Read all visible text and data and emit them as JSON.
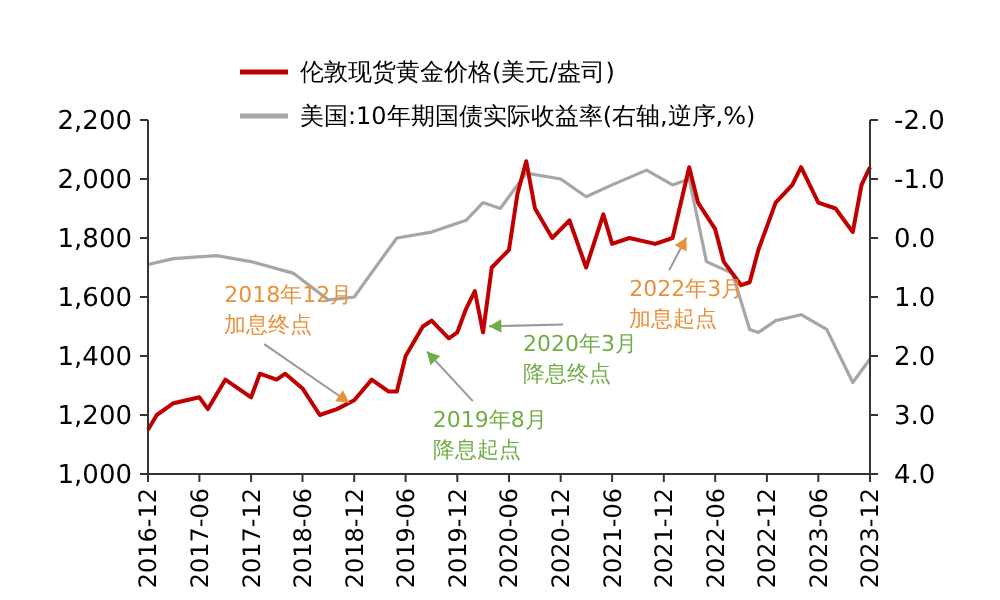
{
  "chart_data": {
    "type": "line",
    "legend": "top",
    "xlim": [
      "2016-12",
      "2023-12"
    ],
    "xticks": [
      "2016-12",
      "2017-06",
      "2017-12",
      "2018-06",
      "2018-12",
      "2019-06",
      "2019-12",
      "2020-06",
      "2020-12",
      "2021-06",
      "2021-12",
      "2022-06",
      "2022-12",
      "2023-06",
      "2023-12"
    ],
    "ylim": [
      1000,
      2200
    ],
    "yticks": [
      {
        "value": 1000,
        "label": "1,000"
      },
      {
        "value": 1200,
        "label": "1,200"
      },
      {
        "value": 1400,
        "label": "1,400"
      },
      {
        "value": 1600,
        "label": "1,600"
      },
      {
        "value": 1800,
        "label": "1,800"
      },
      {
        "value": 2000,
        "label": "2,000"
      },
      {
        "value": 2200,
        "label": "2,200"
      }
    ],
    "y2lim": [
      4,
      -2
    ],
    "y2ticks": [
      {
        "value": 4,
        "label": "4.0"
      },
      {
        "value": 3,
        "label": "3.0"
      },
      {
        "value": 2,
        "label": "2.0"
      },
      {
        "value": 1,
        "label": "1.0"
      },
      {
        "value": 0,
        "label": "0.0"
      },
      {
        "value": -1,
        "label": "-1.0"
      },
      {
        "value": -2,
        "label": "-2.0"
      }
    ],
    "series": [
      {
        "name": "伦敦现货黄金价格(美元/盎司)",
        "color": "#c00000",
        "x": [
          "2016-12",
          "2017-01",
          "2017-03",
          "2017-06",
          "2017-07",
          "2017-09",
          "2017-12",
          "2018-01",
          "2018-03",
          "2018-04",
          "2018-06",
          "2018-08",
          "2018-10",
          "2018-12",
          "2019-02",
          "2019-04",
          "2019-05",
          "2019-06",
          "2019-08",
          "2019-09",
          "2019-11",
          "2019-12",
          "2020-01",
          "2020-02",
          "2020-03",
          "2020-04",
          "2020-06",
          "2020-07",
          "2020-08",
          "2020-09",
          "2020-11",
          "2021-01",
          "2021-03",
          "2021-05",
          "2021-06",
          "2021-08",
          "2021-11",
          "2022-01",
          "2022-03",
          "2022-04",
          "2022-06",
          "2022-07",
          "2022-09",
          "2022-10",
          "2022-11",
          "2023-01",
          "2023-03",
          "2023-04",
          "2023-06",
          "2023-08",
          "2023-10",
          "2023-11",
          "2023-12"
        ],
        "values": [
          1150,
          1200,
          1240,
          1260,
          1220,
          1320,
          1260,
          1340,
          1320,
          1340,
          1290,
          1200,
          1220,
          1250,
          1320,
          1280,
          1280,
          1400,
          1500,
          1520,
          1460,
          1480,
          1560,
          1620,
          1480,
          1700,
          1760,
          1950,
          2060,
          1900,
          1800,
          1860,
          1700,
          1880,
          1780,
          1800,
          1780,
          1800,
          2040,
          1920,
          1830,
          1720,
          1640,
          1650,
          1760,
          1920,
          1980,
          2040,
          1920,
          1900,
          1820,
          1980,
          2040
        ]
      },
      {
        "name": "美国:10年期国债实际收益率(右轴,逆序,%)",
        "color": "#a6a6a6",
        "axis": "y2",
        "x": [
          "2016-12",
          "2017-03",
          "2017-08",
          "2017-12",
          "2018-05",
          "2018-09",
          "2018-12",
          "2019-03",
          "2019-05",
          "2019-09",
          "2020-01",
          "2020-03",
          "2020-05",
          "2020-08",
          "2020-12",
          "2021-03",
          "2021-06",
          "2021-10",
          "2022-01",
          "2022-03",
          "2022-05",
          "2022-08",
          "2022-10",
          "2022-11",
          "2023-01",
          "2023-04",
          "2023-07",
          "2023-10",
          "2023-12"
        ],
        "values": [
          0.45,
          0.35,
          0.3,
          0.4,
          0.6,
          1.05,
          1.0,
          0.4,
          0.0,
          -0.1,
          -0.3,
          -0.6,
          -0.5,
          -1.1,
          -1.0,
          -0.7,
          -0.9,
          -1.15,
          -0.9,
          -1.0,
          0.4,
          0.6,
          1.55,
          1.6,
          1.4,
          1.3,
          1.55,
          2.45,
          2.05
        ]
      }
    ],
    "annotations": [
      {
        "text": "2018年12月加息终点",
        "x": "2018-12",
        "y": 1230
      },
      {
        "text": "2019年8月降息起点",
        "x": "2019-08",
        "y": 1430
      },
      {
        "text": "2020年3月降息终点",
        "x": "2020-03",
        "y": 1500
      },
      {
        "text": "2022年3月加息起点",
        "x": "2022-03",
        "y": 1820
      }
    ]
  }
}
